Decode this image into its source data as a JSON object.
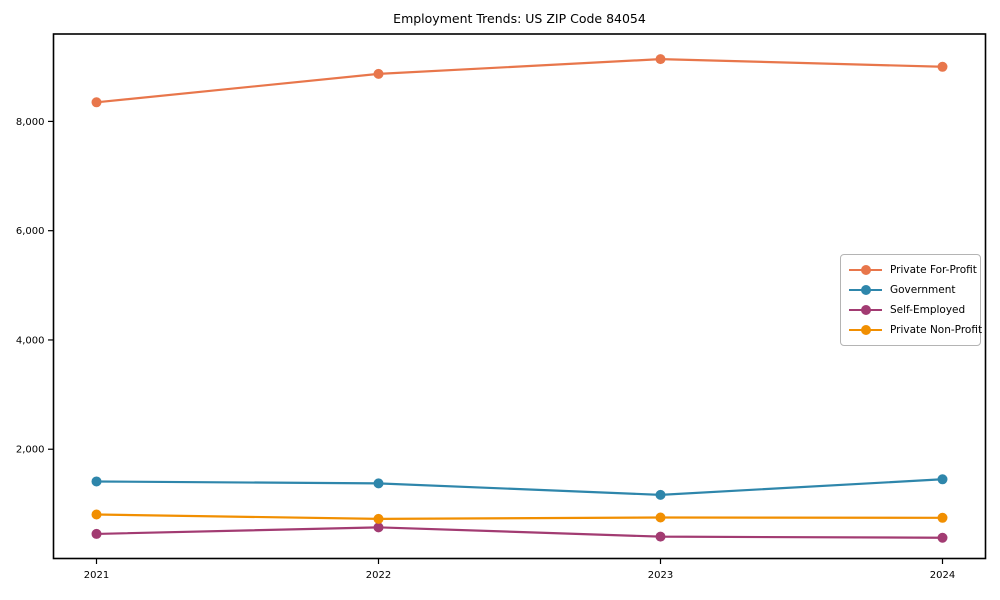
{
  "page": {
    "background": "#ffffff"
  },
  "chart_data": {
    "type": "line",
    "title": "Employment Trends: US ZIP Code 84054",
    "x_labels": [
      "2021",
      "2022",
      "2023",
      "2024"
    ],
    "series": [
      {
        "name": "Private For-Profit",
        "color": "#E8764B",
        "values": [
          8350,
          8870,
          9140,
          9000
        ]
      },
      {
        "name": "Government",
        "color": "#2E86AB",
        "values": [
          1410,
          1375,
          1165,
          1450
        ]
      },
      {
        "name": "Self-Employed",
        "color": "#A23B72",
        "values": [
          450,
          570,
          400,
          380
        ]
      },
      {
        "name": "Private Non-Profit",
        "color": "#F18F01",
        "values": [
          805,
          725,
          750,
          745
        ]
      }
    ],
    "ylim": [
      0,
      9600
    ],
    "yticks": [
      {
        "value": 2000,
        "label": "2,000"
      },
      {
        "value": 4000,
        "label": "4,000"
      },
      {
        "value": 6000,
        "label": "6,000"
      },
      {
        "value": 8000,
        "label": "8,000"
      }
    ],
    "grid": false,
    "legend_position": "center-right",
    "marker": "circle",
    "axes": {
      "spine_color": "#000000",
      "text_color": "#000000",
      "background": "#ffffff"
    }
  }
}
